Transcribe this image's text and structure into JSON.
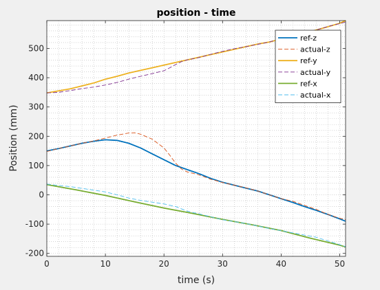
{
  "chart_data": {
    "type": "line",
    "title": "position - time",
    "xlabel": "time (s)",
    "ylabel": "Position (mm)",
    "xlim": [
      0,
      51
    ],
    "ylim": [
      -210,
      595
    ],
    "grid": "minor-dotted",
    "legend_position": "top-right",
    "x_ticks": [
      "0",
      "10",
      "20",
      "30",
      "40",
      "50"
    ],
    "y_ticks": [
      "-200",
      "-100",
      "0",
      "100",
      "200",
      "300",
      "400",
      "500"
    ],
    "series": [
      {
        "name": "ref-z",
        "color": "#0072bd",
        "style": "solid",
        "x": [
          0,
          2,
          4,
          6,
          8,
          10,
          12,
          14,
          16,
          18,
          20,
          22,
          24,
          26,
          28,
          30,
          32,
          34,
          36,
          38,
          40,
          42,
          44,
          46,
          48,
          50,
          51
        ],
        "y": [
          150,
          158,
          167,
          176,
          183,
          188,
          186,
          176,
          160,
          140,
          120,
          100,
          86,
          72,
          56,
          43,
          33,
          23,
          13,
          0,
          -13,
          -26,
          -40,
          -53,
          -67,
          -82,
          -90
        ]
      },
      {
        "name": "actual-z",
        "color": "#d95319",
        "style": "dashed",
        "x": [
          0,
          2,
          4,
          6,
          8,
          10,
          12,
          14,
          15,
          16,
          18,
          20,
          21,
          22,
          23,
          24,
          26,
          28,
          30,
          32,
          34,
          36,
          38,
          40,
          42,
          44,
          46,
          48,
          50,
          51
        ],
        "y": [
          148,
          158,
          167,
          176,
          184,
          194,
          204,
          211,
          212,
          207,
          190,
          160,
          135,
          108,
          88,
          78,
          68,
          53,
          42,
          33,
          24,
          13,
          0,
          -13,
          -22,
          -36,
          -50,
          -67,
          -80,
          -85
        ]
      },
      {
        "name": "ref-y",
        "color": "#edb120",
        "style": "solid",
        "x": [
          0,
          2,
          4,
          6,
          8,
          10,
          12,
          14,
          16,
          18,
          20,
          22,
          24,
          26,
          28,
          30,
          32,
          34,
          36,
          38,
          40,
          42,
          44,
          46,
          48,
          50,
          51
        ],
        "y": [
          348,
          355,
          362,
          372,
          382,
          395,
          405,
          416,
          425,
          434,
          443,
          452,
          461,
          470,
          479,
          488,
          497,
          506,
          515,
          522,
          532,
          543,
          553,
          563,
          574,
          586,
          595
        ]
      },
      {
        "name": "actual-y",
        "color": "#7e2f8e",
        "style": "dashed",
        "x": [
          0,
          2,
          4,
          6,
          8,
          10,
          12,
          14,
          16,
          18,
          20,
          21,
          22,
          23,
          24,
          26,
          28,
          30,
          32,
          34,
          36,
          38,
          40,
          42,
          44,
          46,
          48,
          50,
          51
        ],
        "y": [
          348,
          350,
          356,
          363,
          368,
          375,
          384,
          395,
          405,
          414,
          424,
          434,
          445,
          455,
          461,
          469,
          480,
          490,
          499,
          506,
          514,
          522,
          534,
          545,
          554,
          563,
          575,
          585,
          590
        ]
      },
      {
        "name": "ref-x",
        "color": "#77ac30",
        "style": "solid",
        "x": [
          0,
          5,
          10,
          15,
          20,
          25,
          30,
          35,
          40,
          45,
          50,
          51
        ],
        "y": [
          35,
          17,
          -2,
          -24,
          -45,
          -64,
          -84,
          -102,
          -122,
          -148,
          -172,
          -178
        ]
      },
      {
        "name": "actual-x",
        "color": "#4dbeee",
        "style": "dashed",
        "x": [
          0,
          2,
          4,
          6,
          8,
          10,
          12,
          14,
          16,
          18,
          20,
          22,
          24,
          26,
          28,
          30,
          34,
          38,
          42,
          46,
          50,
          51
        ],
        "y": [
          37,
          32,
          28,
          22,
          16,
          10,
          0,
          -11,
          -19,
          -25,
          -31,
          -40,
          -56,
          -65,
          -75,
          -85,
          -98,
          -115,
          -130,
          -145,
          -170,
          -177
        ]
      }
    ]
  }
}
